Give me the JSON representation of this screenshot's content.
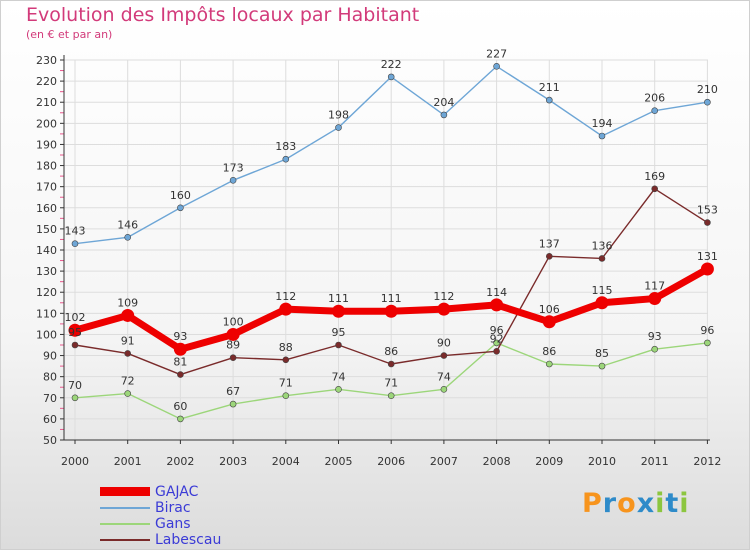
{
  "header": {
    "title": "Evolution des Impôts locaux par Habitant",
    "subtitle": "(en € et par an)"
  },
  "chart_data": {
    "type": "line",
    "title": "Evolution des Impôts locaux par Habitant",
    "subtitle": "(en € et par an)",
    "x": [
      "2000",
      "2001",
      "2002",
      "2003",
      "2004",
      "2005",
      "2006",
      "2007",
      "2008",
      "2009",
      "2010",
      "2011",
      "2012"
    ],
    "yticks": [
      "50",
      "60",
      "70",
      "80",
      "90",
      "100",
      "110",
      "120",
      "130",
      "140",
      "150",
      "160",
      "170",
      "180",
      "190",
      "200",
      "210",
      "220",
      "230"
    ],
    "ylim": [
      50,
      230
    ],
    "series": [
      {
        "name": "GAJAC",
        "color": "#ee0000",
        "values": [
          102,
          109,
          93,
          100,
          112,
          111,
          111,
          112,
          114,
          106,
          115,
          117,
          131
        ],
        "labels": [
          "102",
          "109",
          "93",
          "100",
          "112",
          "111",
          "111",
          "112",
          "114",
          "106",
          "115",
          "117",
          "131"
        ]
      },
      {
        "name": "Birac",
        "color": "#6ea6d6",
        "values": [
          143,
          146,
          160,
          173,
          183,
          198,
          222,
          204,
          227,
          211,
          194,
          206,
          210
        ],
        "labels": [
          "143",
          "146",
          "160",
          "173",
          "183",
          "198",
          "222",
          "204",
          "227",
          "211",
          "194",
          "206",
          "210"
        ]
      },
      {
        "name": "Gans",
        "color": "#9cd67a",
        "values": [
          70,
          72,
          60,
          67,
          71,
          74,
          71,
          74,
          96,
          86,
          85,
          93,
          96
        ],
        "labels": [
          "70",
          "72",
          "60",
          "67",
          "71",
          "74",
          "71",
          "74",
          "96",
          "86",
          "85",
          "93",
          "96"
        ]
      },
      {
        "name": "Labescau",
        "color": "#7a2b2b",
        "values": [
          95,
          91,
          81,
          89,
          88,
          95,
          86,
          90,
          92,
          137,
          136,
          169,
          153
        ],
        "labels": [
          "95",
          "91",
          "81",
          "89",
          "88",
          "95",
          "86",
          "90",
          "92",
          "137",
          "136",
          "169",
          "153"
        ]
      }
    ],
    "legend_position": "bottom-left"
  },
  "legend": {
    "items": [
      "GAJAC",
      "Birac",
      "Gans",
      "Labescau"
    ]
  },
  "logo": {
    "letters": [
      "P",
      "r",
      "o",
      "x",
      "i",
      "t",
      "i"
    ]
  },
  "colors": {
    "title": "#d23a7a",
    "legend_text": "#3b3bd6",
    "logo": [
      "#f7941d",
      "#2e8bc9",
      "#f7941d",
      "#2e8bc9",
      "#8cc63f",
      "#2e8bc9",
      "#8cc63f"
    ]
  }
}
